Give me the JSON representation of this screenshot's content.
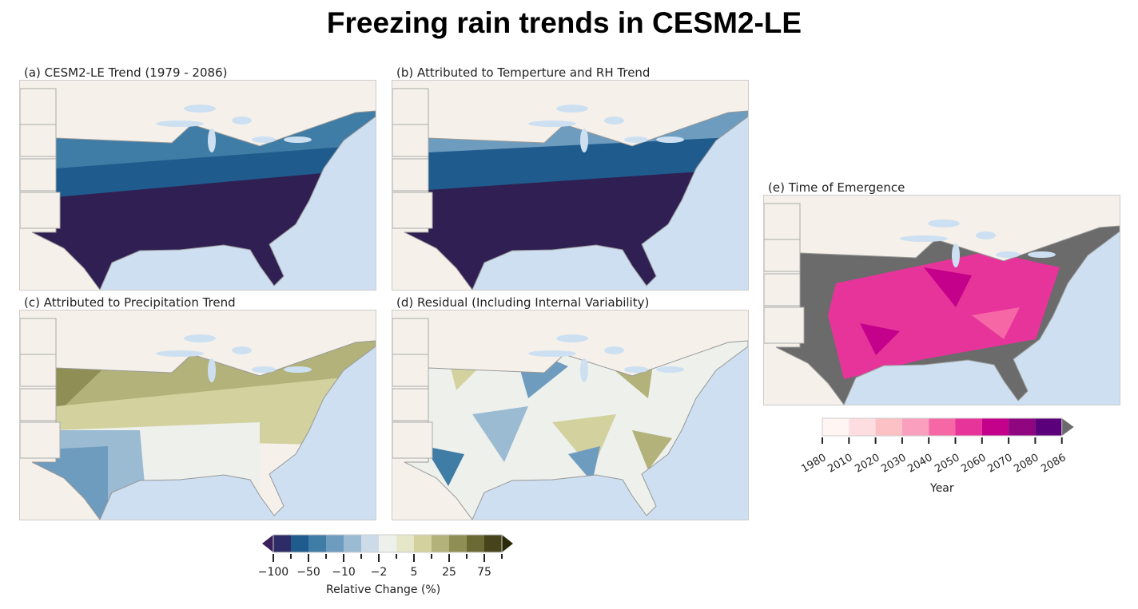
{
  "title": "Freezing rain trends in CESM2-LE",
  "panels": [
    {
      "id": "a",
      "title": "(a) CESM2-LE Trend (1979 - 2086)"
    },
    {
      "id": "b",
      "title": "(b) Attributed to Temperture and RH Trend"
    },
    {
      "id": "c",
      "title": "(c) Attributed to Precipitation Trend"
    },
    {
      "id": "d",
      "title": "(d) Residual (Including Internal Variability)"
    },
    {
      "id": "e",
      "title": "(e) Time of Emergence"
    }
  ],
  "colorbar_change": {
    "label": "Relative Change (%)",
    "tick_labels": [
      "−100",
      "−50",
      "−10",
      "−2",
      "5",
      "25",
      "75"
    ],
    "colors": [
      "#2e2c66",
      "#1f5b8c",
      "#3f7ca6",
      "#6d9cbf",
      "#9bbbd3",
      "#ccdbe7",
      "#eef0ec",
      "#e6e6c8",
      "#d3d29e",
      "#b3b27a",
      "#8f8f55",
      "#6b6a35",
      "#45441a"
    ],
    "under_color": "#3a1f5c",
    "over_color": "#2a2a0a"
  },
  "colorbar_year": {
    "label": "Year",
    "tick_labels": [
      "1980",
      "2010",
      "2020",
      "2030",
      "2040",
      "2050",
      "2060",
      "2070",
      "2080",
      "2086"
    ],
    "colors": [
      "#fff5f2",
      "#fddde0",
      "#fcc1c4",
      "#fa9fbd",
      "#f667a6",
      "#e7349b",
      "#c3018a",
      "#900580",
      "#5b007a"
    ],
    "over_color": "#6b6b6b"
  }
}
